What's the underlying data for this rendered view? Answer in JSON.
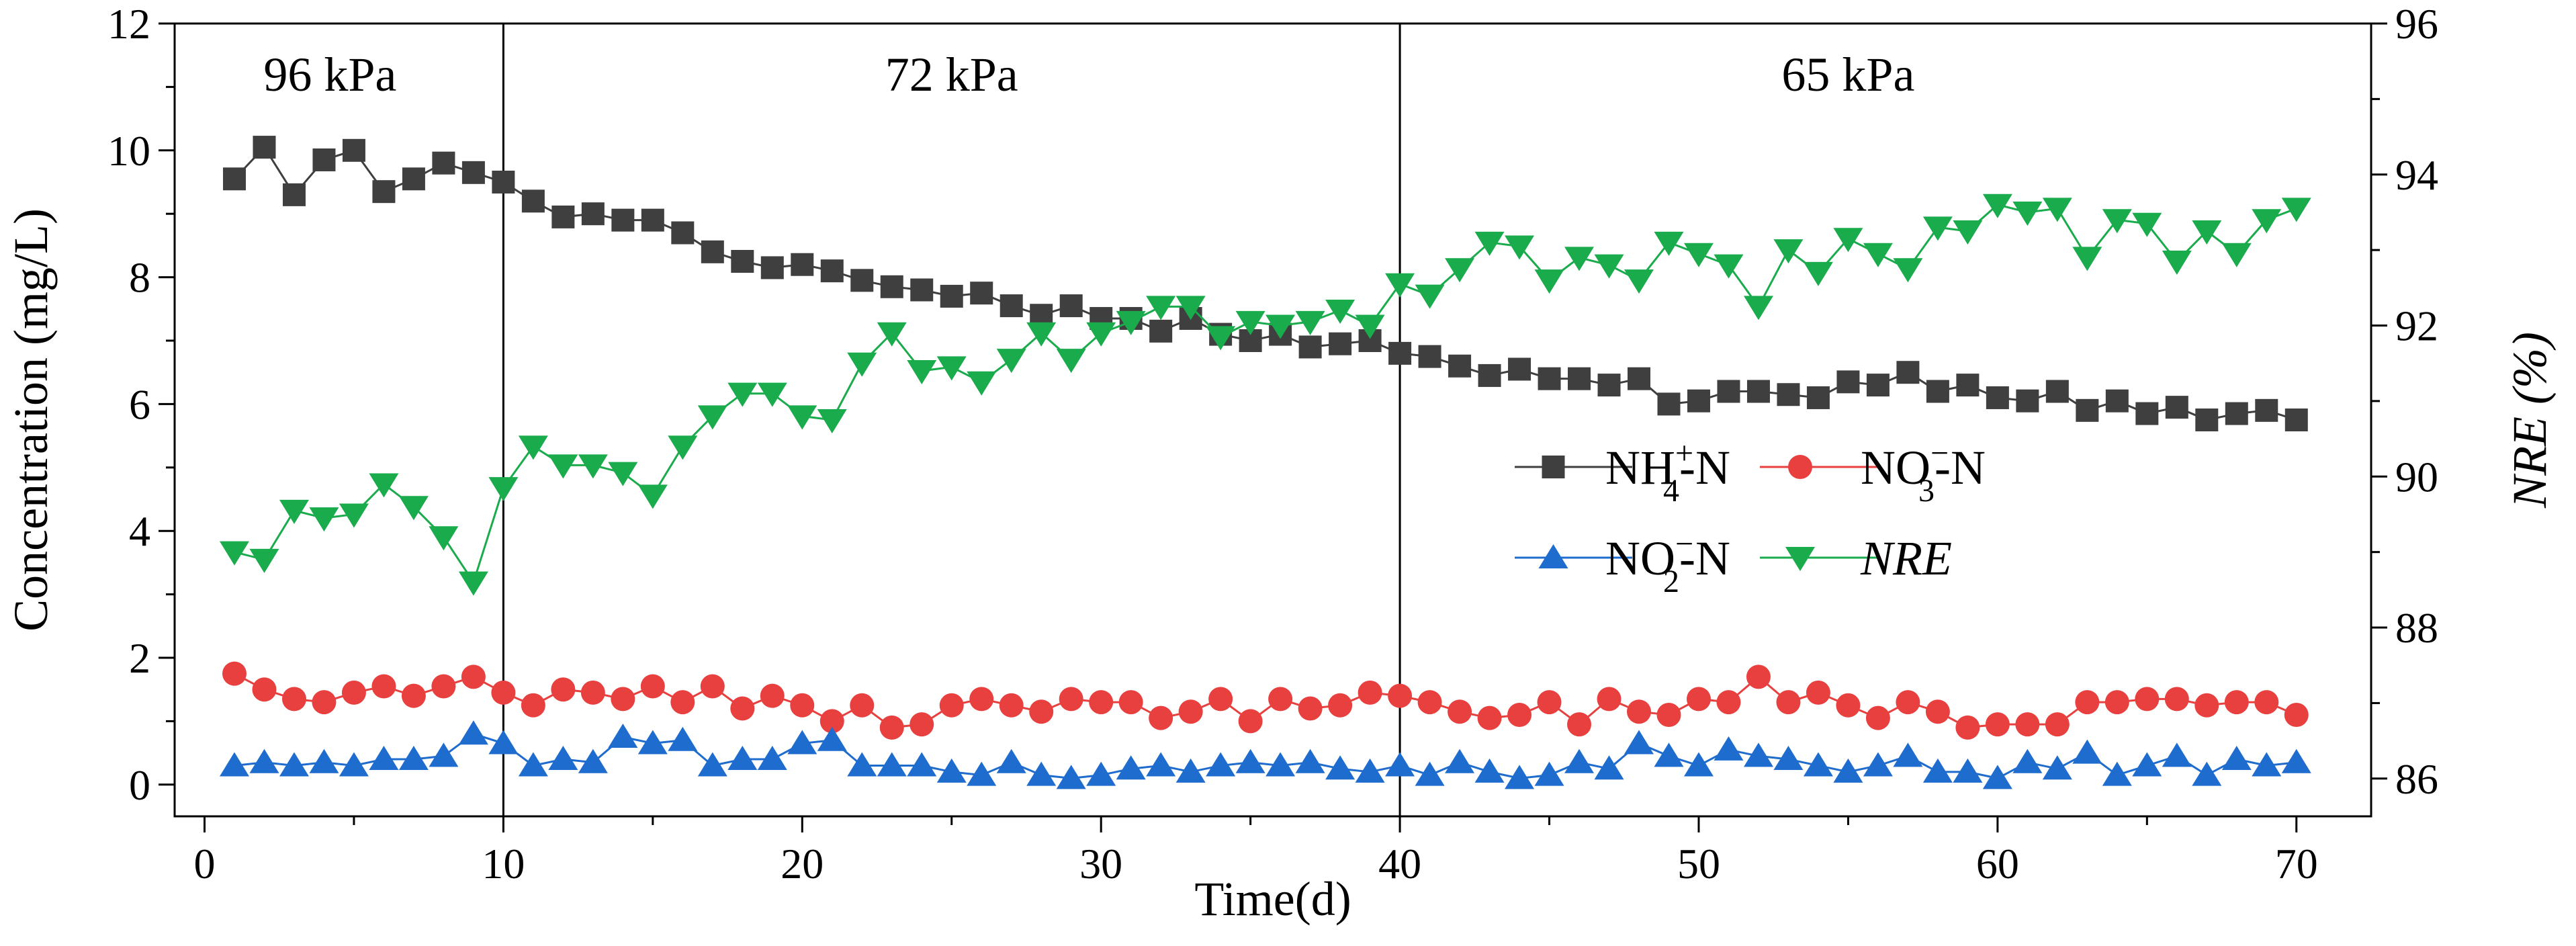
{
  "chart_data": {
    "type": "line",
    "xlabel": "Time(d)",
    "ylabel": "Concentration (mg/L)",
    "y2label": "NRE (%)",
    "xlim": [
      -1,
      72.5
    ],
    "ylim": [
      -0.5,
      12
    ],
    "y2lim": [
      85.5,
      96
    ],
    "xticks": [
      0,
      10,
      20,
      30,
      40,
      50,
      60,
      70
    ],
    "yticks": [
      0,
      2,
      4,
      6,
      8,
      10,
      12
    ],
    "y2ticks": [
      86,
      88,
      90,
      92,
      94,
      96
    ],
    "phase_boundaries": [
      10,
      40
    ],
    "phases": [
      {
        "label": "96 kPa",
        "x_center": 4.2
      },
      {
        "label": "72 kPa",
        "x_center": 25
      },
      {
        "label": "65 kPa",
        "x_center": 55
      }
    ],
    "x": [
      1,
      2,
      3,
      4,
      5,
      6,
      7,
      8,
      9,
      10,
      11,
      12,
      13,
      14,
      15,
      16,
      17,
      18,
      19,
      20,
      21,
      22,
      23,
      24,
      25,
      26,
      27,
      28,
      29,
      30,
      31,
      32,
      33,
      34,
      35,
      36,
      37,
      38,
      39,
      40,
      41,
      42,
      43,
      44,
      45,
      46,
      47,
      48,
      49,
      50,
      51,
      52,
      53,
      54,
      55,
      56,
      57,
      58,
      59,
      60,
      61,
      62,
      63,
      64,
      65,
      66,
      67,
      68,
      69,
      70
    ],
    "series": [
      {
        "name": "NH4+-N",
        "legend_main": "NH",
        "legend_sup": "+",
        "legend_sub": "4",
        "legend_tail": "-N",
        "axis": "left",
        "marker": "square",
        "color": "#3f3f3f",
        "values": [
          9.55,
          10.05,
          9.3,
          9.85,
          10.0,
          9.35,
          9.55,
          9.8,
          9.65,
          9.5,
          9.2,
          8.95,
          9.0,
          8.9,
          8.9,
          8.7,
          8.4,
          8.25,
          8.15,
          8.2,
          8.1,
          7.95,
          7.85,
          7.8,
          7.7,
          7.75,
          7.55,
          7.4,
          7.55,
          7.35,
          7.35,
          7.15,
          7.35,
          7.1,
          7.0,
          7.1,
          6.9,
          6.95,
          7.0,
          6.8,
          6.75,
          6.6,
          6.45,
          6.55,
          6.4,
          6.4,
          6.3,
          6.4,
          6.0,
          6.05,
          6.2,
          6.2,
          6.15,
          6.1,
          6.35,
          6.3,
          6.5,
          6.2,
          6.3,
          6.1,
          6.05,
          6.2,
          5.9,
          6.05,
          5.85,
          5.95,
          5.75,
          5.85,
          5.9,
          5.75
        ]
      },
      {
        "name": "NO3--N",
        "legend_main": "NO",
        "legend_sup": "−",
        "legend_sub": "3",
        "legend_tail": "-N",
        "axis": "left",
        "marker": "circle",
        "color": "#e8403f",
        "values": [
          1.75,
          1.5,
          1.35,
          1.3,
          1.45,
          1.55,
          1.4,
          1.55,
          1.7,
          1.45,
          1.25,
          1.5,
          1.45,
          1.35,
          1.55,
          1.3,
          1.55,
          1.2,
          1.4,
          1.25,
          1.0,
          1.25,
          0.9,
          0.95,
          1.25,
          1.35,
          1.25,
          1.15,
          1.35,
          1.3,
          1.3,
          1.05,
          1.15,
          1.35,
          1.0,
          1.35,
          1.2,
          1.25,
          1.45,
          1.4,
          1.3,
          1.15,
          1.05,
          1.1,
          1.3,
          0.95,
          1.35,
          1.15,
          1.1,
          1.35,
          1.3,
          1.7,
          1.3,
          1.45,
          1.25,
          1.05,
          1.3,
          1.15,
          0.9,
          0.95,
          0.95,
          0.95,
          1.3,
          1.3,
          1.35,
          1.35,
          1.25,
          1.3,
          1.3,
          1.1
        ]
      },
      {
        "name": "NO2--N",
        "legend_main": "NO",
        "legend_sup": "−",
        "legend_sub": "2",
        "legend_tail": "-N",
        "axis": "left",
        "marker": "triangle-up",
        "color": "#1f6ccf",
        "values": [
          0.3,
          0.35,
          0.3,
          0.35,
          0.3,
          0.4,
          0.4,
          0.45,
          0.8,
          0.65,
          0.3,
          0.4,
          0.35,
          0.75,
          0.65,
          0.7,
          0.3,
          0.4,
          0.4,
          0.65,
          0.7,
          0.3,
          0.3,
          0.3,
          0.2,
          0.15,
          0.35,
          0.15,
          0.1,
          0.15,
          0.25,
          0.3,
          0.2,
          0.3,
          0.35,
          0.3,
          0.35,
          0.25,
          0.2,
          0.3,
          0.15,
          0.35,
          0.2,
          0.1,
          0.15,
          0.35,
          0.25,
          0.65,
          0.45,
          0.3,
          0.55,
          0.45,
          0.4,
          0.3,
          0.2,
          0.3,
          0.45,
          0.2,
          0.2,
          0.1,
          0.35,
          0.25,
          0.5,
          0.15,
          0.3,
          0.45,
          0.15,
          0.4,
          0.3,
          0.35
        ]
      },
      {
        "name": "NRE",
        "legend_main": "NRE",
        "legend_sup": "",
        "legend_sub": "",
        "legend_tail": "",
        "axis": "right",
        "marker": "triangle-down",
        "color": "#1aab4c",
        "values": [
          89.0,
          88.9,
          89.55,
          89.45,
          89.5,
          89.9,
          89.6,
          89.2,
          88.6,
          89.85,
          90.4,
          90.15,
          90.15,
          90.05,
          89.75,
          90.4,
          90.8,
          91.1,
          91.1,
          90.8,
          90.75,
          91.5,
          91.9,
          91.4,
          91.45,
          91.25,
          91.55,
          91.9,
          91.55,
          91.9,
          92.05,
          92.25,
          92.25,
          91.85,
          92.05,
          92.0,
          92.05,
          92.2,
          92.0,
          92.55,
          92.4,
          92.75,
          93.1,
          93.05,
          92.6,
          92.9,
          92.8,
          92.6,
          93.1,
          92.95,
          92.8,
          92.25,
          93.0,
          92.7,
          93.15,
          92.95,
          92.75,
          93.3,
          93.25,
          93.6,
          93.5,
          93.55,
          92.9,
          93.4,
          93.35,
          92.85,
          93.25,
          92.95,
          93.4,
          93.55
        ]
      }
    ]
  }
}
